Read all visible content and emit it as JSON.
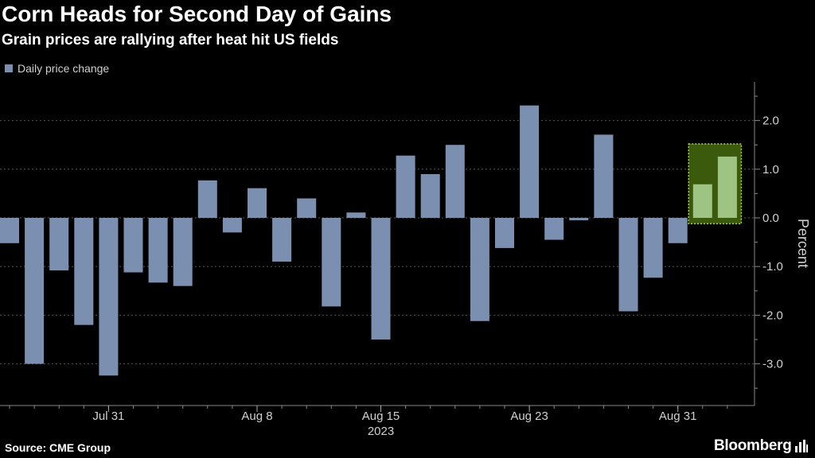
{
  "header": {
    "title": "Corn Heads for Second Day of Gains",
    "subtitle": "Grain prices are rallying after heat hit US fields"
  },
  "footer": {
    "source": "Source: CME Group",
    "brand": "Bloomberg",
    "brand_icon": "bar-chart-icon"
  },
  "colors": {
    "background": "#000000",
    "bar": "#7b90b0",
    "bar_highlight": "#9dc482",
    "highlight_fill": "#3c5a0c",
    "highlight_border": "#a6d83a",
    "grid": "#555555",
    "text": "#d0d0d0"
  },
  "chart_data": {
    "type": "bar",
    "legend": [
      "Daily price change"
    ],
    "legend_position": "top-left",
    "ylabel": "Percent",
    "ylim": [
      -3.8,
      2.85
    ],
    "yticks": [
      2.0,
      1.0,
      0.0,
      -1.0,
      -2.0,
      -3.0
    ],
    "ytick_labels": [
      "2.0",
      "1.0",
      "0.0",
      "-1.0",
      "-2.0",
      "-3.0"
    ],
    "y_axis_position": "right",
    "grid": true,
    "x_tick_labels": [
      {
        "label": "Jul 31",
        "index": 4
      },
      {
        "label": "Aug 8",
        "index": 10
      },
      {
        "label": "Aug 15",
        "index": 15
      },
      {
        "label": "Aug 23",
        "index": 21
      },
      {
        "label": "Aug 31",
        "index": 27
      }
    ],
    "x_year_label": "2023",
    "x_year_index": 15,
    "series": [
      {
        "values": [
          -0.52,
          -3.0,
          -1.08,
          -2.2,
          -3.24,
          -1.12,
          -1.33,
          -1.4,
          0.77,
          -0.3,
          0.61,
          -0.9,
          0.4,
          -1.82,
          0.11,
          -2.5,
          1.28,
          0.9,
          1.5,
          -2.12,
          -0.62,
          2.31,
          -0.45,
          -0.05,
          1.71,
          -1.92,
          -1.23,
          -0.52,
          0.69,
          1.26
        ]
      }
    ],
    "highlight": {
      "from_index": 27.5,
      "to_index": 29.5,
      "y_from": -0.12,
      "y_to": 1.52
    }
  }
}
